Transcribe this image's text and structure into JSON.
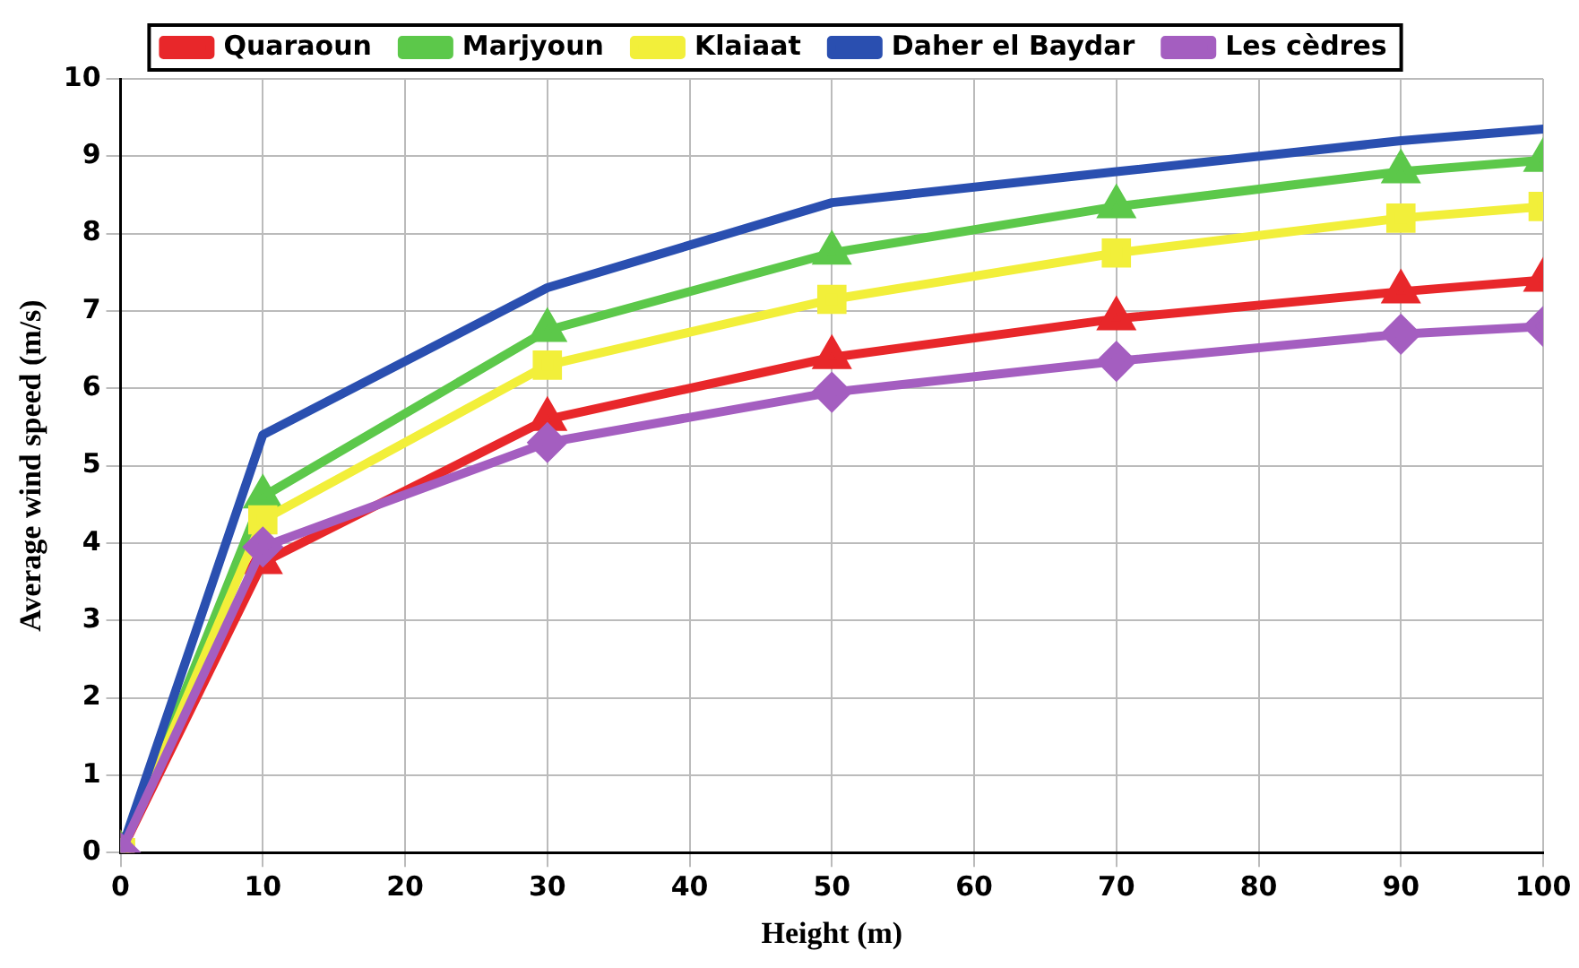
{
  "chart_data": {
    "type": "line",
    "xlabel": "Height (m)",
    "ylabel": "Average wind speed (m/s)",
    "x": [
      0,
      10,
      30,
      50,
      70,
      90,
      100
    ],
    "series": [
      {
        "name": "Quaraoun",
        "color": "#e8272a",
        "marker": "triangle",
        "values": [
          0,
          3.75,
          5.6,
          6.4,
          6.9,
          7.25,
          7.4
        ]
      },
      {
        "name": "Marjyoun",
        "color": "#5cc84a",
        "marker": "triangle",
        "values": [
          0,
          4.6,
          6.75,
          7.75,
          8.35,
          8.8,
          8.95
        ]
      },
      {
        "name": "Klaiaat",
        "color": "#f2ef3a",
        "marker": "square",
        "values": [
          0,
          4.3,
          6.3,
          7.15,
          7.75,
          8.2,
          8.35
        ]
      },
      {
        "name": "Daher el Baydar",
        "color": "#2a4fb0",
        "marker": "none",
        "values": [
          0,
          5.4,
          7.3,
          8.4,
          8.8,
          9.2,
          9.35
        ]
      },
      {
        "name": "Les cèdres",
        "color": "#a45ec0",
        "marker": "diamond",
        "values": [
          0,
          3.95,
          5.3,
          5.95,
          6.35,
          6.7,
          6.8
        ]
      }
    ],
    "xlim": [
      0,
      100
    ],
    "xticks": [
      0,
      10,
      20,
      30,
      40,
      50,
      60,
      70,
      80,
      90,
      100
    ],
    "ylim": [
      0,
      10
    ],
    "yticks": [
      0,
      1,
      2,
      3,
      4,
      5,
      6,
      7,
      8,
      9,
      10
    ],
    "grid": true,
    "legend": "top",
    "line_style": "solid"
  }
}
